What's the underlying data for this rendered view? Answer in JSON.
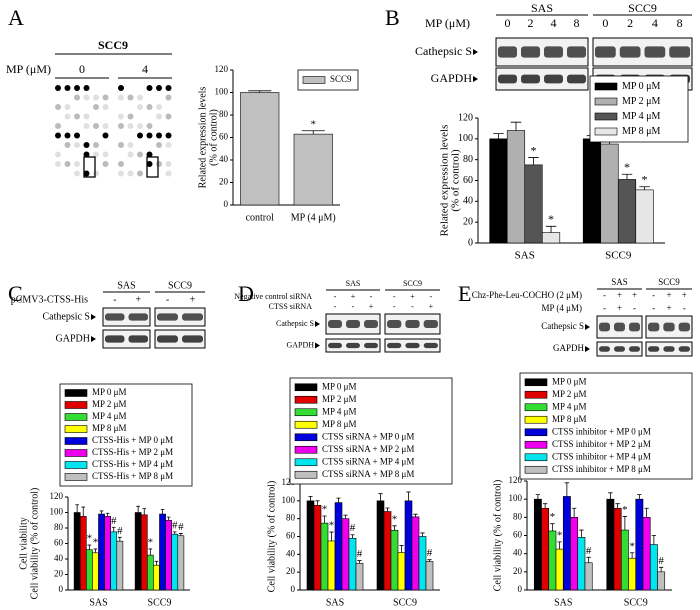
{
  "panel_labels": [
    "A",
    "B",
    "C",
    "D",
    "E"
  ],
  "blots": [
    {
      "title": "SCC9",
      "conditions": [
        {
          "label": "MP (μM)",
          "values": [
            "0",
            "4"
          ]
        }
      ]
    },
    {
      "groups": [
        "SAS",
        "SCC9"
      ],
      "conditions": [
        {
          "label": "MP (μM)",
          "values": [
            "0",
            "2",
            "4",
            "8",
            "0",
            "2",
            "4",
            "8"
          ]
        }
      ],
      "rows": [
        "Cathepsic S",
        "GAPDH"
      ]
    },
    {
      "groups": [
        "SAS",
        "SCC9"
      ],
      "conditions": [
        {
          "label": "pCMV3-CTSS-His",
          "values": [
            "-",
            "+",
            "-",
            "+"
          ]
        }
      ],
      "rows": [
        "Cathepsic S",
        "GAPDH"
      ]
    },
    {
      "groups": [
        "SAS",
        "SCC9"
      ],
      "conditions": [
        {
          "label": "Negative control siRNA",
          "values": [
            "-",
            "+",
            "-",
            "-",
            "+",
            "-"
          ]
        },
        {
          "label": "CTSS siRNA",
          "values": [
            "-",
            "-",
            "+",
            "-",
            "-",
            "+"
          ]
        }
      ],
      "rows": [
        "Cathepsic S",
        "GAPDH"
      ]
    },
    {
      "groups": [
        "SAS",
        "SCC9"
      ],
      "conditions": [
        {
          "label": "Chz-Phe-Leu-COCHO (2 μM)",
          "values": [
            "-",
            "+",
            "+",
            "-",
            "+",
            "+"
          ]
        },
        {
          "label": "MP (4 μM)",
          "values": [
            "-",
            "+",
            "-",
            "-",
            "+",
            "-"
          ]
        }
      ],
      "rows": [
        "Cathepsic S",
        "GAPDH"
      ]
    }
  ],
  "chart_data": [
    {
      "type": "bar",
      "ylabel": [
        "Related expression levels",
        "(% of control)"
      ],
      "categories": [
        "control",
        "MP (4 μM)"
      ],
      "ylim": [
        0,
        120
      ],
      "yticks": [
        0,
        20,
        40,
        60,
        80,
        100,
        120
      ],
      "series": [
        {
          "name": "SCC9",
          "color": "#c0c0c0",
          "values": [
            100,
            63
          ],
          "errors": [
            1.5,
            3
          ],
          "significance": [
            null,
            "*"
          ]
        }
      ]
    },
    {
      "type": "bar",
      "ylabel": [
        "Related expression levels",
        "(% of control)"
      ],
      "categories": [
        "SAS",
        "SCC9"
      ],
      "ylim": [
        0,
        120
      ],
      "yticks": [
        0,
        20,
        40,
        60,
        80,
        100,
        120
      ],
      "series": [
        {
          "name": "MP 0 μM",
          "color": "#000000",
          "values": [
            100,
            100
          ],
          "errors": [
            5,
            3
          ],
          "significance": [
            null,
            null
          ]
        },
        {
          "name": "MP 2 μM",
          "color": "#b0b0b0",
          "values": [
            108,
            95
          ],
          "errors": [
            8,
            6
          ],
          "significance": [
            null,
            null
          ]
        },
        {
          "name": "MP 4 μM",
          "color": "#555555",
          "values": [
            75,
            61
          ],
          "errors": [
            7,
            5
          ],
          "significance": [
            "*",
            "*"
          ]
        },
        {
          "name": "MP 8 μM",
          "color": "#e6e6e6",
          "values": [
            10,
            51
          ],
          "errors": [
            6,
            3
          ],
          "significance": [
            "*",
            "*"
          ]
        }
      ]
    },
    {
      "type": "bar",
      "ylabel": [
        "Cell viability",
        "Cell viability (% of control)"
      ],
      "categories": [
        "SAS",
        "SCC9"
      ],
      "ylim": [
        0,
        120
      ],
      "yticks": [
        0,
        20,
        40,
        60,
        80,
        100,
        120
      ],
      "series": [
        {
          "name": "MP 0 μM",
          "color": "#000000",
          "values": [
            100,
            100
          ],
          "errors": [
            10,
            8
          ],
          "significance": [
            null,
            null
          ]
        },
        {
          "name": "MP 2 μM",
          "color": "#e00000",
          "values": [
            95,
            97
          ],
          "errors": [
            12,
            8
          ],
          "significance": [
            null,
            null
          ]
        },
        {
          "name": "MP 4 μM",
          "color": "#33dd33",
          "values": [
            52,
            45
          ],
          "errors": [
            6,
            8
          ],
          "significance": [
            "*",
            "*"
          ]
        },
        {
          "name": "MP 8 μM",
          "color": "#ffff00",
          "values": [
            48,
            32
          ],
          "errors": [
            5,
            5
          ],
          "significance": [
            "*",
            null
          ]
        },
        {
          "name": "CTSS-His + MP 0 μM",
          "color": "#0000dd",
          "values": [
            98,
            98
          ],
          "errors": [
            4,
            6
          ],
          "significance": [
            null,
            null
          ]
        },
        {
          "name": "CTSS-His + MP 2 μM",
          "color": "#ee00ee",
          "values": [
            95,
            90
          ],
          "errors": [
            4,
            4
          ],
          "significance": [
            null,
            null
          ]
        },
        {
          "name": "CTSS-His + MP 4 μM",
          "color": "#00e5ee",
          "values": [
            75,
            72
          ],
          "errors": [
            6,
            3
          ],
          "significance": [
            "#",
            "#"
          ]
        },
        {
          "name": "CTSS-His + MP 8 μM",
          "color": "#bfbfbf",
          "values": [
            63,
            70
          ],
          "errors": [
            5,
            3
          ],
          "significance": [
            "#",
            "#"
          ]
        }
      ]
    },
    {
      "type": "bar",
      "ylabel": [
        "Cell viability (% of control)"
      ],
      "categories": [
        "SAS",
        "SCC9"
      ],
      "ylim": [
        0,
        120
      ],
      "yticks": [
        0,
        20,
        40,
        60,
        80,
        100,
        120
      ],
      "series": [
        {
          "name": "MP 0 μM",
          "color": "#000000",
          "values": [
            100,
            100
          ],
          "errors": [
            5,
            8
          ],
          "significance": [
            null,
            null
          ]
        },
        {
          "name": "MP 2 μM",
          "color": "#e00000",
          "values": [
            95,
            88
          ],
          "errors": [
            5,
            4
          ],
          "significance": [
            null,
            null
          ]
        },
        {
          "name": "MP 4 μM",
          "color": "#33dd33",
          "values": [
            75,
            67
          ],
          "errors": [
            8,
            5
          ],
          "significance": [
            "*",
            "*"
          ]
        },
        {
          "name": "MP 8 μM",
          "color": "#ffff00",
          "values": [
            55,
            42
          ],
          "errors": [
            10,
            8
          ],
          "significance": [
            "*",
            null
          ]
        },
        {
          "name": "CTSS siRNA + MP 0 μM",
          "color": "#0000dd",
          "values": [
            98,
            100
          ],
          "errors": [
            5,
            10
          ],
          "significance": [
            null,
            null
          ]
        },
        {
          "name": "CTSS siRNA + MP 2 μM",
          "color": "#ee00ee",
          "values": [
            80,
            82
          ],
          "errors": [
            4,
            3
          ],
          "significance": [
            null,
            null
          ]
        },
        {
          "name": "CTSS siRNA + MP 4 μM",
          "color": "#00e5ee",
          "values": [
            58,
            60
          ],
          "errors": [
            4,
            4
          ],
          "significance": [
            "#",
            null
          ]
        },
        {
          "name": "CTSS siRNA + MP 8 μM",
          "color": "#bfbfbf",
          "values": [
            30,
            32
          ],
          "errors": [
            3,
            2
          ],
          "significance": [
            "#",
            "#"
          ]
        }
      ]
    },
    {
      "type": "bar",
      "ylabel": [
        "Cell viability (% of control)"
      ],
      "categories": [
        "SAS",
        "SCC9"
      ],
      "ylim": [
        0,
        120
      ],
      "yticks": [
        0,
        20,
        40,
        60,
        80,
        100,
        120
      ],
      "series": [
        {
          "name": "MP 0 μM",
          "color": "#000000",
          "values": [
            100,
            100
          ],
          "errors": [
            5,
            7
          ],
          "significance": [
            null,
            null
          ]
        },
        {
          "name": "MP 2 μM",
          "color": "#e00000",
          "values": [
            90,
            90
          ],
          "errors": [
            5,
            5
          ],
          "significance": [
            null,
            null
          ]
        },
        {
          "name": "MP 4 μM",
          "color": "#33dd33",
          "values": [
            65,
            66
          ],
          "errors": [
            8,
            15
          ],
          "significance": [
            "*",
            "*"
          ]
        },
        {
          "name": "MP 8 μM",
          "color": "#ffff00",
          "values": [
            45,
            35
          ],
          "errors": [
            8,
            6
          ],
          "significance": [
            "*",
            "*"
          ]
        },
        {
          "name": "CTSS inhibitor + MP 0 μM",
          "color": "#0000dd",
          "values": [
            103,
            100
          ],
          "errors": [
            15,
            5
          ],
          "significance": [
            null,
            null
          ]
        },
        {
          "name": "CTSS inhibitor + MP 2 μM",
          "color": "#ee00ee",
          "values": [
            80,
            80
          ],
          "errors": [
            10,
            10
          ],
          "significance": [
            null,
            null
          ]
        },
        {
          "name": "CTSS inhibitor + MP 4 μM",
          "color": "#00e5ee",
          "values": [
            58,
            50
          ],
          "errors": [
            8,
            10
          ],
          "significance": [
            null,
            null
          ]
        },
        {
          "name": "CTSS inhibitor + MP 8 μM",
          "color": "#bfbfbf",
          "values": [
            30,
            20
          ],
          "errors": [
            6,
            5
          ],
          "significance": [
            "#",
            "#"
          ]
        }
      ]
    }
  ]
}
